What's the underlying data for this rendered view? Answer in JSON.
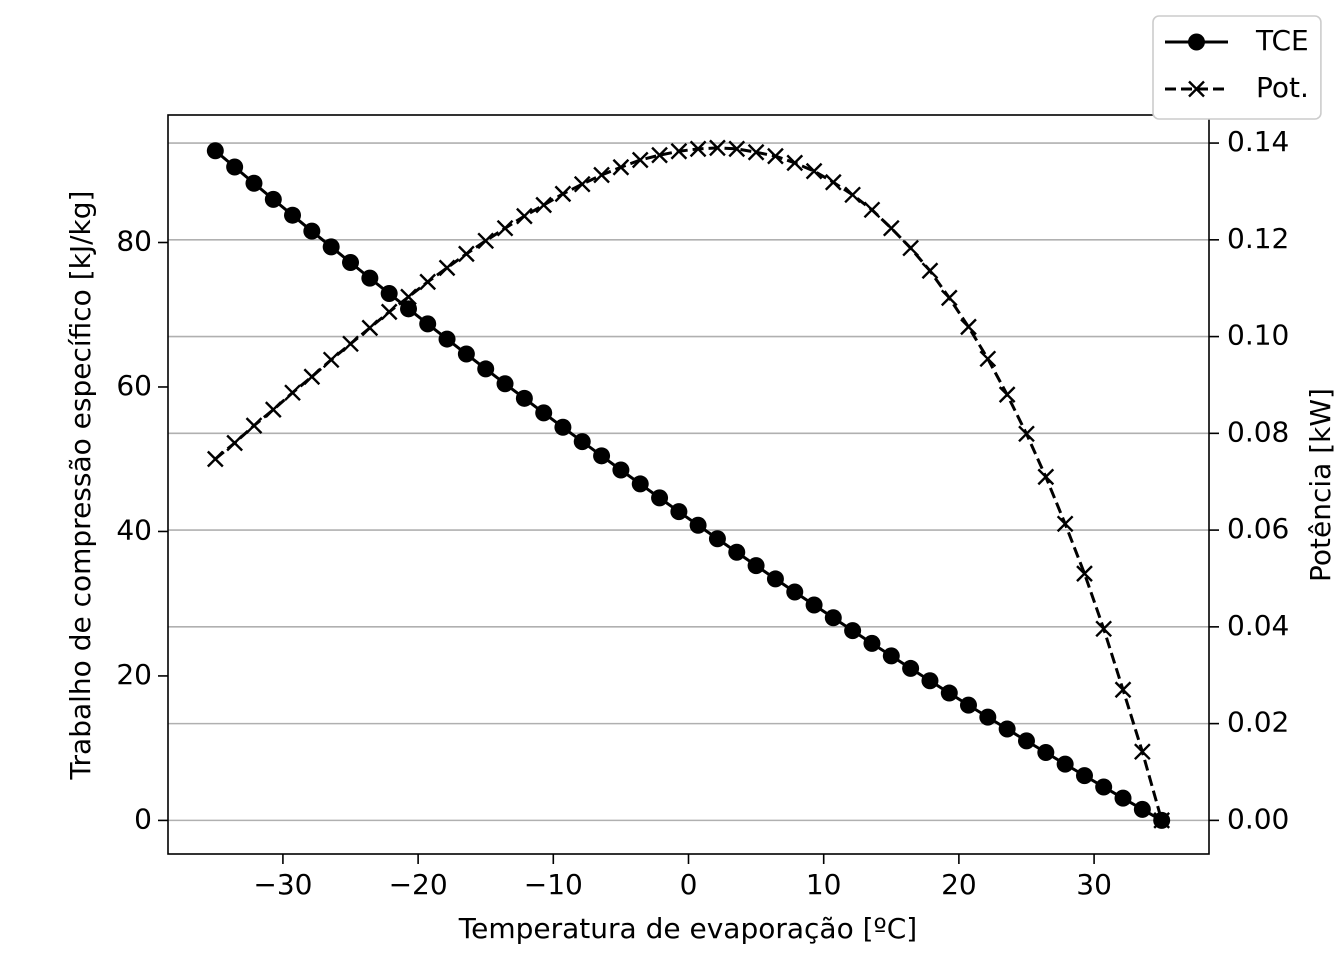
{
  "chart_data": {
    "type": "line",
    "x_label": "Temperatura de evaporação [ºC]",
    "y_label": "Trabalho de compressão específico [kJ/kg]",
    "y2_label": "Potência [kW]",
    "x": [
      -35,
      -33.57,
      -32.14,
      -30.71,
      -29.29,
      -27.86,
      -26.43,
      -25,
      -23.57,
      -22.14,
      -20.71,
      -19.29,
      -17.86,
      -16.43,
      -15,
      -13.57,
      -12.14,
      -10.71,
      -9.29,
      -7.86,
      -6.43,
      -5,
      -3.57,
      -2.14,
      -0.71,
      0.71,
      2.14,
      3.57,
      5,
      6.43,
      7.86,
      9.29,
      10.71,
      12.14,
      13.57,
      15,
      16.43,
      17.86,
      19.29,
      20.71,
      22.14,
      23.57,
      25,
      26.43,
      27.86,
      29.29,
      30.71,
      32.14,
      33.57,
      35
    ],
    "series": [
      {
        "name": "TCE",
        "color": "#000000",
        "marker": "o",
        "linestyle": "solid",
        "values": [
          92.7,
          90.45,
          88.2,
          85.97,
          83.78,
          81.57,
          79.4,
          77.23,
          75.07,
          72.94,
          70.82,
          68.73,
          66.63,
          64.56,
          62.5,
          60.45,
          58.43,
          56.41,
          54.42,
          52.44,
          50.47,
          48.51,
          46.58,
          44.65,
          42.74,
          40.86,
          38.99,
          37.12,
          35.27,
          33.43,
          31.62,
          29.82,
          28.05,
          26.27,
          24.51,
          22.78,
          21.04,
          19.33,
          17.63,
          15.96,
          14.3,
          12.65,
          11.01,
          9.4,
          7.79,
          6.2,
          4.63,
          3.08,
          1.53,
          0
        ]
      },
      {
        "name": "Pot.",
        "color": "#000000",
        "marker": "x",
        "linestyle": "dashed",
        "axis": "y2",
        "values": [
          0.0747,
          0.078,
          0.0816,
          0.0849,
          0.0884,
          0.0917,
          0.0952,
          0.0985,
          0.1018,
          0.1051,
          0.1082,
          0.1113,
          0.1142,
          0.1171,
          0.1198,
          0.1224,
          0.1249,
          0.1272,
          0.1295,
          0.1315,
          0.1334,
          0.135,
          0.1365,
          0.1375,
          0.1383,
          0.1388,
          0.139,
          0.1388,
          0.1381,
          0.1373,
          0.1359,
          0.1342,
          0.1319,
          0.1293,
          0.1262,
          0.1224,
          0.1183,
          0.1136,
          0.108,
          0.102,
          0.0954,
          0.088,
          0.0799,
          0.071,
          0.0613,
          0.051,
          0.0396,
          0.027,
          0.0142,
          0
        ]
      }
    ],
    "xlim": [
      -38.5,
      38.5
    ],
    "xticks": [
      {
        "value": -30,
        "label": "−30"
      },
      {
        "value": -20,
        "label": "−20"
      },
      {
        "value": -10,
        "label": "−10"
      },
      0,
      10,
      20,
      30
    ],
    "ylim": [
      -4.65,
      97.65
    ],
    "yticks": [
      0,
      20,
      40,
      60,
      80
    ],
    "y2lim": [
      -0.00695,
      0.1458
    ],
    "y2ticks": [
      {
        "value": 0,
        "label": "0.00"
      },
      0.02,
      0.04,
      0.06,
      0.08,
      {
        "value": 0.1,
        "label": "0.10"
      },
      0.12,
      0.14
    ],
    "grid": "y2",
    "legend": "upper right"
  }
}
